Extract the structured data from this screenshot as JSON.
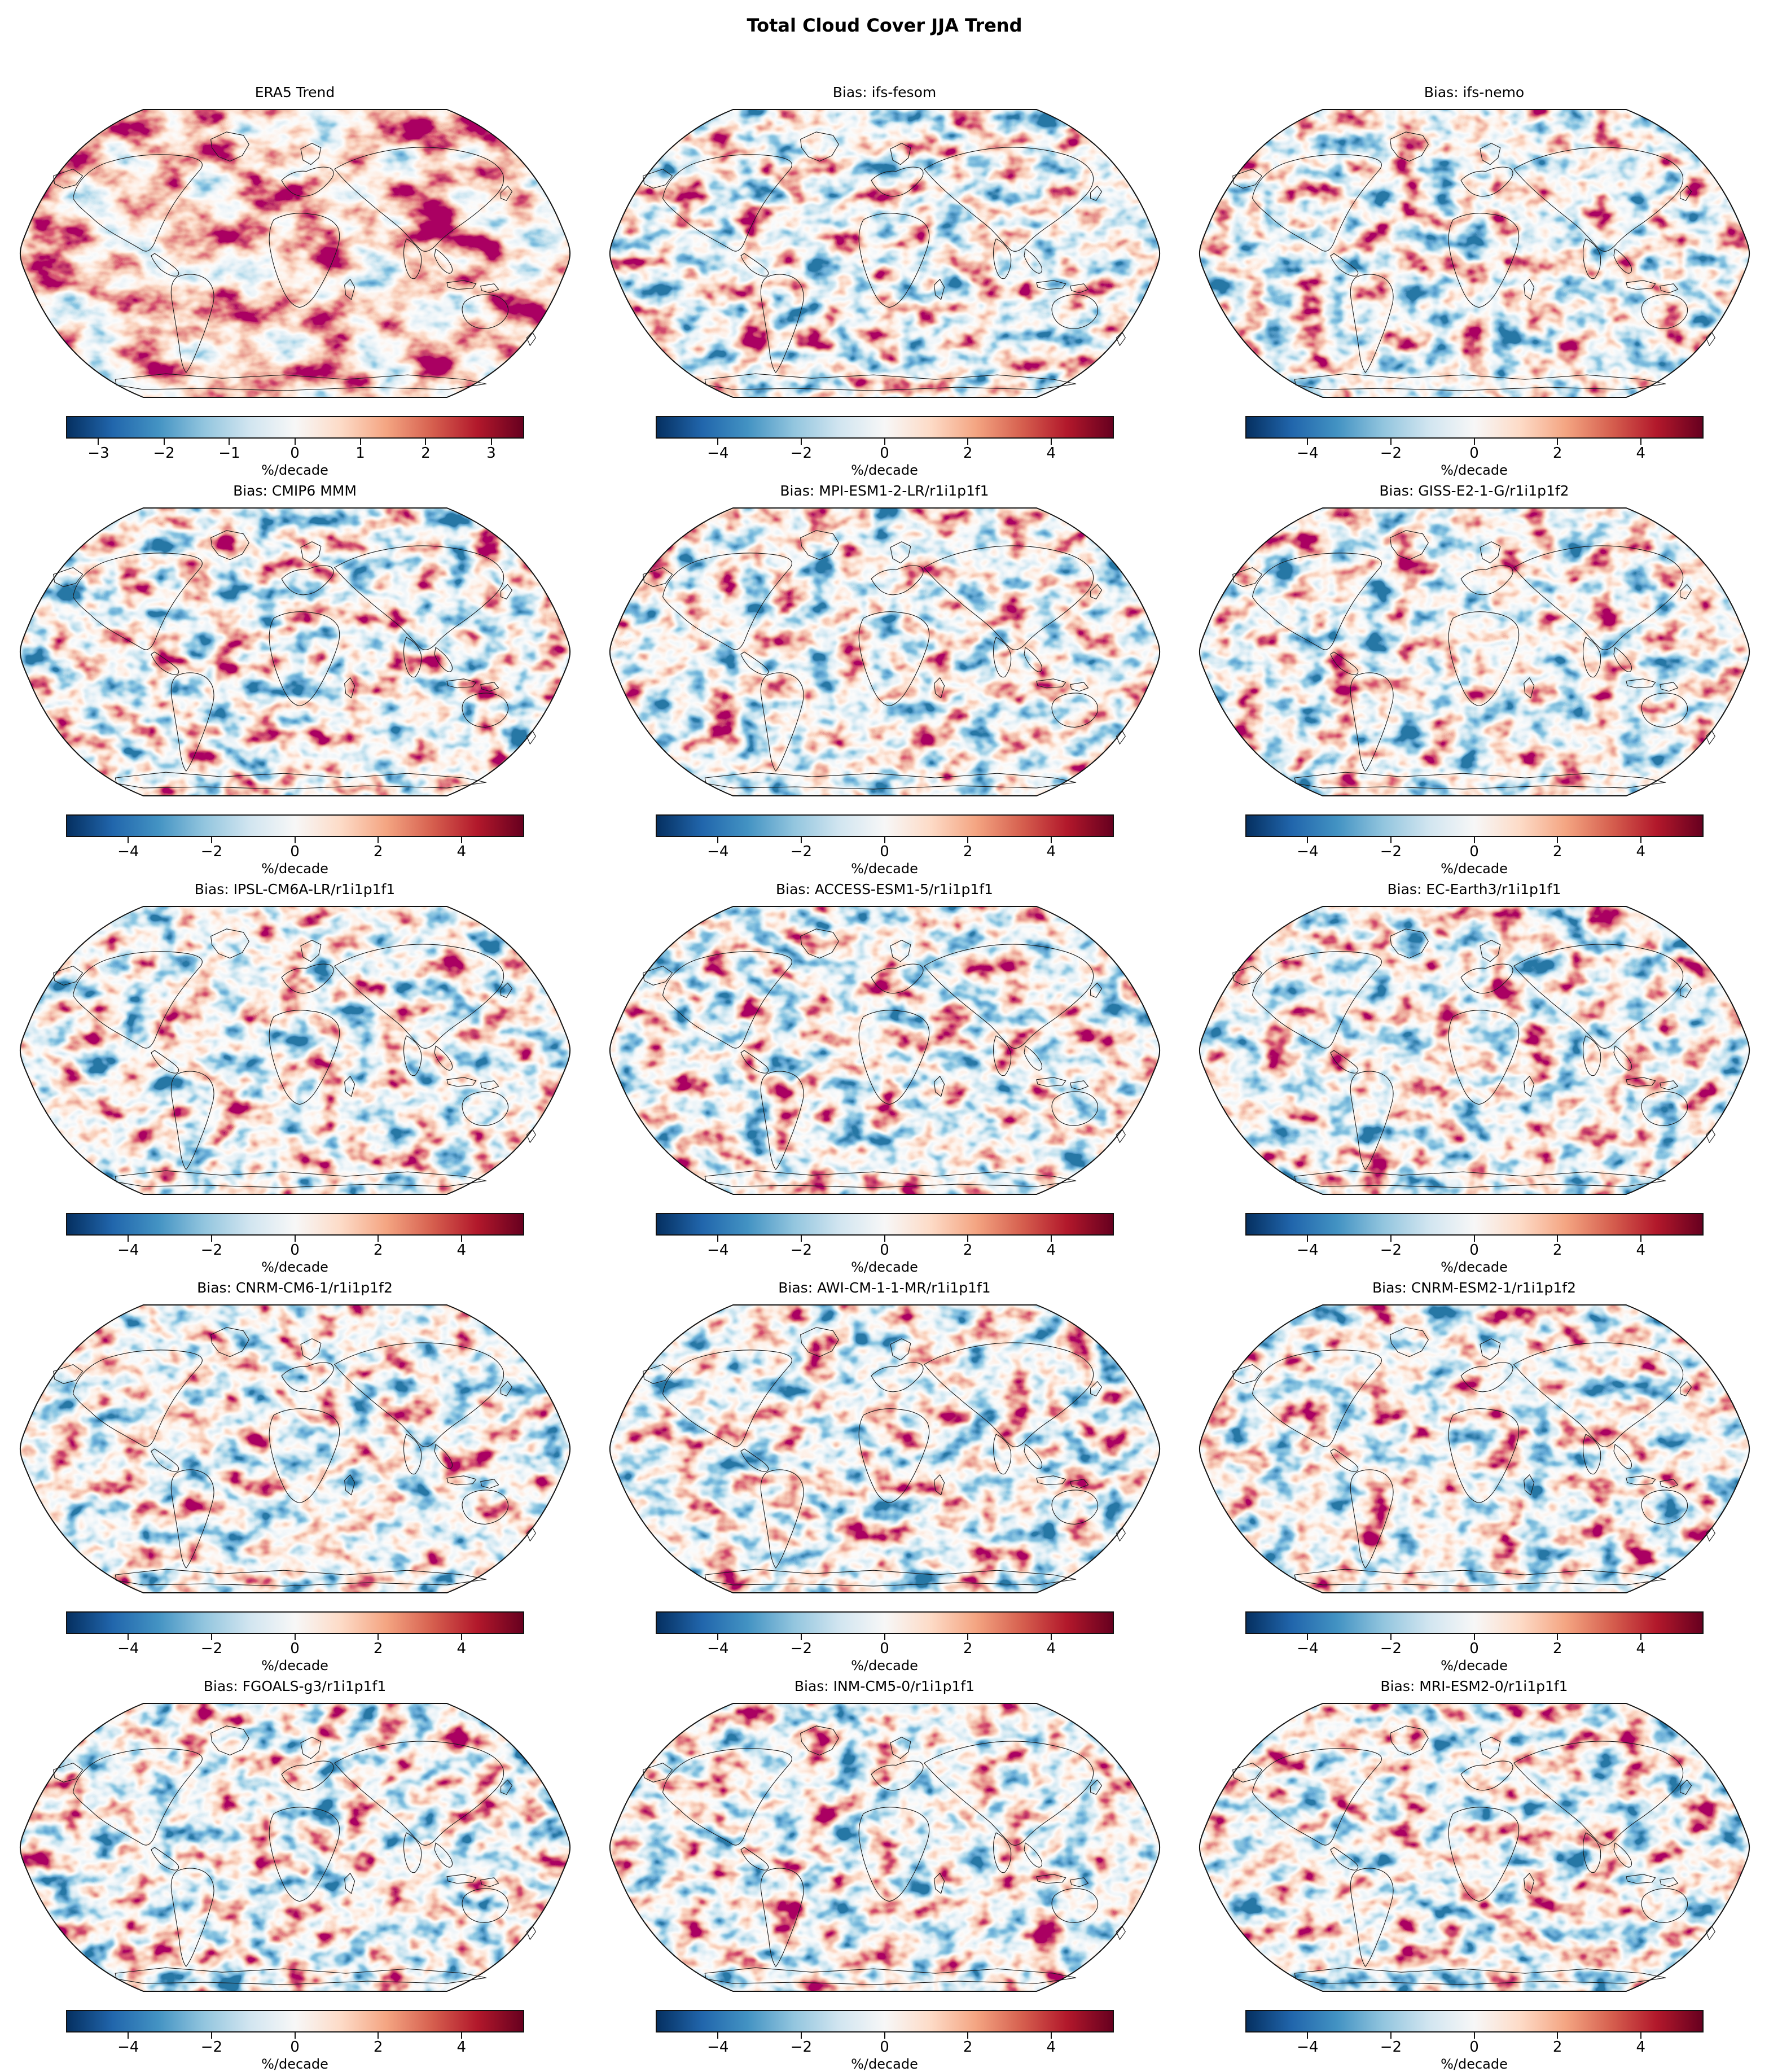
{
  "figure": {
    "title": "Total Cloud Cover JJA Trend",
    "rows": 5,
    "cols": 3
  },
  "colormap": {
    "name": "RdBu_r",
    "stops": [
      "#053061",
      "#2166ac",
      "#4393c3",
      "#92c5de",
      "#d1e5f0",
      "#f7f7f7",
      "#fddbc7",
      "#f4a582",
      "#d6604f",
      "#b2182b",
      "#67001f"
    ]
  },
  "chart_data": [
    {
      "type": "heatmap",
      "projection": "robinson-world-map",
      "title": "ERA5 Trend",
      "colorbar_ticks": [
        -3,
        -2,
        -1,
        0,
        1,
        2,
        3
      ],
      "colorbar_tick_labels": [
        "−3",
        "−2",
        "−1",
        "0",
        "1",
        "2",
        "3"
      ],
      "colorbar_range": [
        -3.5,
        3.5
      ],
      "colorbar_label": "%/decade",
      "colormap": "RdBu_r",
      "field_note": "smooth reanalysis trend field, strong dark-red positive regions over tropics and oceans"
    },
    {
      "type": "heatmap",
      "projection": "robinson-world-map",
      "title": "Bias: ifs-fesom",
      "colorbar_ticks": [
        -4,
        -2,
        0,
        2,
        4
      ],
      "colorbar_tick_labels": [
        "−4",
        "−2",
        "0",
        "2",
        "4"
      ],
      "colorbar_range": [
        -5.5,
        5.5
      ],
      "colorbar_label": "%/decade",
      "colormap": "RdBu_r",
      "field_note": "balanced red/blue bias field"
    },
    {
      "type": "heatmap",
      "projection": "robinson-world-map",
      "title": "Bias: ifs-nemo",
      "colorbar_ticks": [
        -4,
        -2,
        0,
        2,
        4
      ],
      "colorbar_tick_labels": [
        "−4",
        "−2",
        "0",
        "2",
        "4"
      ],
      "colorbar_range": [
        -5.5,
        5.5
      ],
      "colorbar_label": "%/decade",
      "colormap": "RdBu_r",
      "field_note": "balanced red/blue bias field"
    },
    {
      "type": "heatmap",
      "projection": "robinson-world-map",
      "title": "Bias: CMIP6 MMM",
      "colorbar_ticks": [
        -4,
        -2,
        0,
        2,
        4
      ],
      "colorbar_tick_labels": [
        "−4",
        "−2",
        "0",
        "2",
        "4"
      ],
      "colorbar_range": [
        -5.5,
        5.5
      ],
      "colorbar_label": "%/decade",
      "colormap": "RdBu_r",
      "field_note": "multi-model-mean bias, muted amplitudes"
    },
    {
      "type": "heatmap",
      "projection": "robinson-world-map",
      "title": "Bias: MPI-ESM1-2-LR/r1i1p1f1",
      "colorbar_ticks": [
        -4,
        -2,
        0,
        2,
        4
      ],
      "colorbar_tick_labels": [
        "−4",
        "−2",
        "0",
        "2",
        "4"
      ],
      "colorbar_range": [
        -5.5,
        5.5
      ],
      "colorbar_label": "%/decade",
      "colormap": "RdBu_r",
      "field_note": "coarse pixelated model-grid bias field"
    },
    {
      "type": "heatmap",
      "projection": "robinson-world-map",
      "title": "Bias: GISS-E2-1-G/r1i1p1f2",
      "colorbar_ticks": [
        -4,
        -2,
        0,
        2,
        4
      ],
      "colorbar_tick_labels": [
        "−4",
        "−2",
        "0",
        "2",
        "4"
      ],
      "colorbar_range": [
        -5.5,
        5.5
      ],
      "colorbar_label": "%/decade",
      "colormap": "RdBu_r",
      "field_note": "coarse pixelated model-grid bias field"
    },
    {
      "type": "heatmap",
      "projection": "robinson-world-map",
      "title": "Bias: IPSL-CM6A-LR/r1i1p1f1",
      "colorbar_ticks": [
        -4,
        -2,
        0,
        2,
        4
      ],
      "colorbar_tick_labels": [
        "−4",
        "−2",
        "0",
        "2",
        "4"
      ],
      "colorbar_range": [
        -5.5,
        5.5
      ],
      "colorbar_label": "%/decade",
      "colormap": "RdBu_r",
      "field_note": "coarse pixelated model-grid bias field"
    },
    {
      "type": "heatmap",
      "projection": "robinson-world-map",
      "title": "Bias: ACCESS-ESM1-5/r1i1p1f1",
      "colorbar_ticks": [
        -4,
        -2,
        0,
        2,
        4
      ],
      "colorbar_tick_labels": [
        "−4",
        "−2",
        "0",
        "2",
        "4"
      ],
      "colorbar_range": [
        -5.5,
        5.5
      ],
      "colorbar_label": "%/decade",
      "colormap": "RdBu_r",
      "field_note": "coarse pixelated model-grid bias field"
    },
    {
      "type": "heatmap",
      "projection": "robinson-world-map",
      "title": "Bias: EC-Earth3/r1i1p1f1",
      "colorbar_ticks": [
        -4,
        -2,
        0,
        2,
        4
      ],
      "colorbar_tick_labels": [
        "−4",
        "−2",
        "0",
        "2",
        "4"
      ],
      "colorbar_range": [
        -5.5,
        5.5
      ],
      "colorbar_label": "%/decade",
      "colormap": "RdBu_r",
      "field_note": "coarse pixelated model-grid bias field"
    },
    {
      "type": "heatmap",
      "projection": "robinson-world-map",
      "title": "Bias: CNRM-CM6-1/r1i1p1f2",
      "colorbar_ticks": [
        -4,
        -2,
        0,
        2,
        4
      ],
      "colorbar_tick_labels": [
        "−4",
        "−2",
        "0",
        "2",
        "4"
      ],
      "colorbar_range": [
        -5.5,
        5.5
      ],
      "colorbar_label": "%/decade",
      "colormap": "RdBu_r",
      "field_note": "coarse pixelated model-grid bias field"
    },
    {
      "type": "heatmap",
      "projection": "robinson-world-map",
      "title": "Bias: AWI-CM-1-1-MR/r1i1p1f1",
      "colorbar_ticks": [
        -4,
        -2,
        0,
        2,
        4
      ],
      "colorbar_tick_labels": [
        "−4",
        "−2",
        "0",
        "2",
        "4"
      ],
      "colorbar_range": [
        -5.5,
        5.5
      ],
      "colorbar_label": "%/decade",
      "colormap": "RdBu_r",
      "field_note": "coarse pixelated model-grid bias field"
    },
    {
      "type": "heatmap",
      "projection": "robinson-world-map",
      "title": "Bias: CNRM-ESM2-1/r1i1p1f2",
      "colorbar_ticks": [
        -4,
        -2,
        0,
        2,
        4
      ],
      "colorbar_tick_labels": [
        "−4",
        "−2",
        "0",
        "2",
        "4"
      ],
      "colorbar_range": [
        -5.5,
        5.5
      ],
      "colorbar_label": "%/decade",
      "colormap": "RdBu_r",
      "field_note": "coarse pixelated model-grid bias field"
    },
    {
      "type": "heatmap",
      "projection": "robinson-world-map",
      "title": "Bias: FGOALS-g3/r1i1p1f1",
      "colorbar_ticks": [
        -4,
        -2,
        0,
        2,
        4
      ],
      "colorbar_tick_labels": [
        "−4",
        "−2",
        "0",
        "2",
        "4"
      ],
      "colorbar_range": [
        -5.5,
        5.5
      ],
      "colorbar_label": "%/decade",
      "colormap": "RdBu_r",
      "field_note": "coarse pixelated model-grid bias field"
    },
    {
      "type": "heatmap",
      "projection": "robinson-world-map",
      "title": "Bias: INM-CM5-0/r1i1p1f1",
      "colorbar_ticks": [
        -4,
        -2,
        0,
        2,
        4
      ],
      "colorbar_tick_labels": [
        "−4",
        "−2",
        "0",
        "2",
        "4"
      ],
      "colorbar_range": [
        -5.5,
        5.5
      ],
      "colorbar_label": "%/decade",
      "colormap": "RdBu_r",
      "field_note": "coarse pixelated model-grid bias field"
    },
    {
      "type": "heatmap",
      "projection": "robinson-world-map",
      "title": "Bias: MRI-ESM2-0/r1i1p1f1",
      "colorbar_ticks": [
        -4,
        -2,
        0,
        2,
        4
      ],
      "colorbar_tick_labels": [
        "−4",
        "−2",
        "0",
        "2",
        "4"
      ],
      "colorbar_range": [
        -5.5,
        5.5
      ],
      "colorbar_label": "%/decade",
      "colormap": "RdBu_r",
      "field_note": "coarse pixelated model-grid bias field"
    }
  ]
}
